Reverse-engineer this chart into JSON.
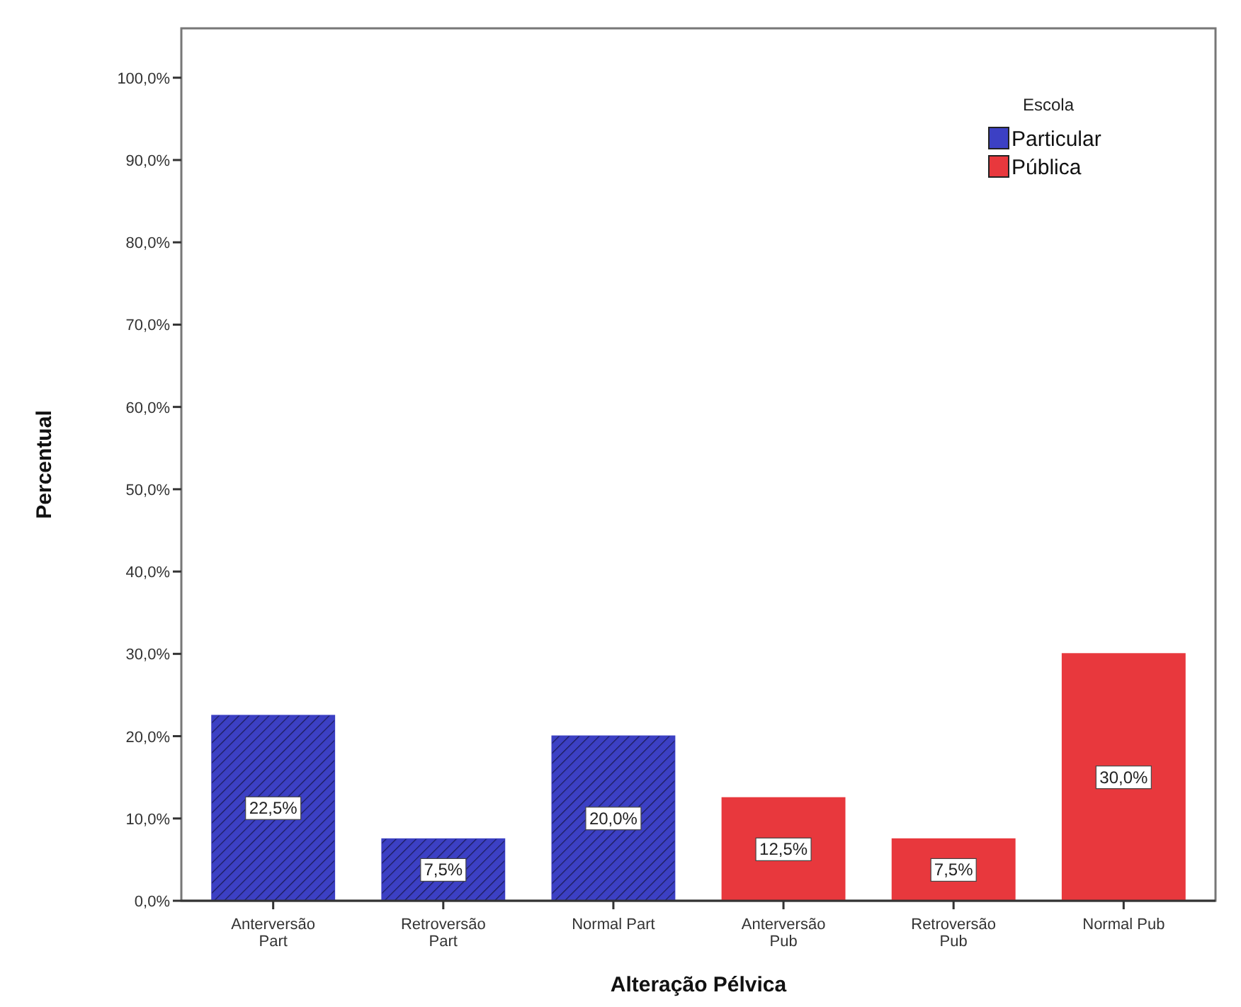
{
  "chart_data": {
    "type": "bar",
    "xlabel": "Alteração Pélvica",
    "ylabel": "Percentual",
    "legend_title": "Escola",
    "legend": "top right",
    "categories": [
      "Anterversão Part",
      "Retroversão Part",
      "Normal Part",
      "Anterversão Pub",
      "Retroversão Pub",
      "Normal Pub"
    ],
    "series": [
      {
        "name": "Particular",
        "color": "#3c40c4",
        "values": [
          22.5,
          7.5,
          20.0,
          null,
          null,
          null
        ],
        "value_labels": [
          "22,5%",
          "7,5%",
          "20,0%",
          null,
          null,
          null
        ]
      },
      {
        "name": "Pública",
        "color": "#e8383d",
        "values": [
          null,
          null,
          null,
          12.5,
          7.5,
          30.0
        ],
        "value_labels": [
          null,
          null,
          null,
          "12,5%",
          "7,5%",
          "30,0%"
        ]
      }
    ],
    "ylim": [
      0,
      106
    ],
    "yticks": [
      {
        "value": 0,
        "label": "0,0%"
      },
      {
        "value": 10,
        "label": "10,0%"
      },
      {
        "value": 20,
        "label": "20,0%"
      },
      {
        "value": 30,
        "label": "30,0%"
      },
      {
        "value": 40,
        "label": "40,0%"
      },
      {
        "value": 50,
        "label": "50,0%"
      },
      {
        "value": 60,
        "label": "60,0%"
      },
      {
        "value": 70,
        "label": "70,0%"
      },
      {
        "value": 80,
        "label": "80,0%"
      },
      {
        "value": 90,
        "label": "90,0%"
      },
      {
        "value": 100,
        "label": "100,0%"
      }
    ],
    "grid": false
  }
}
